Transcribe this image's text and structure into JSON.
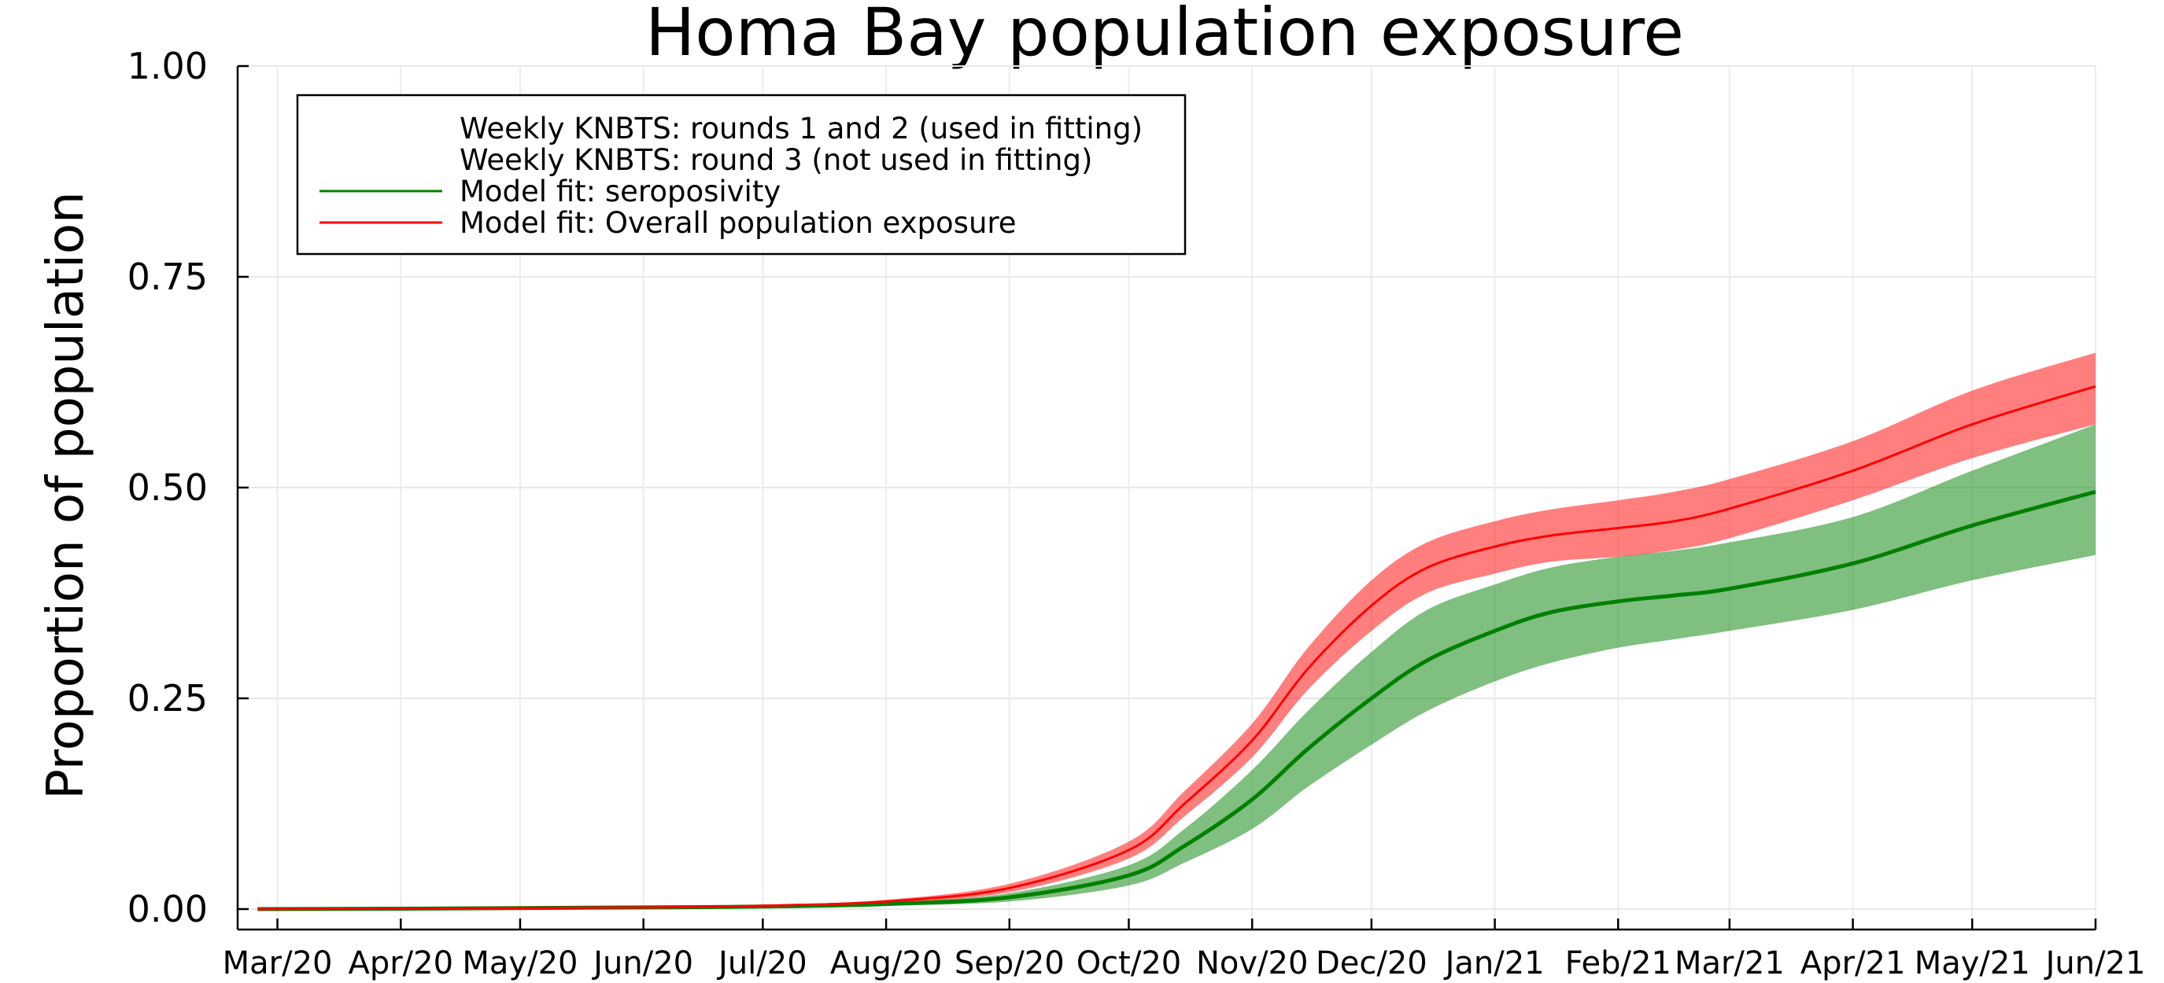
{
  "chart_data": {
    "type": "line",
    "title": "Homa Bay population exposure",
    "ylabel": "Proportion of population",
    "xlabel": "",
    "ylim": [
      0,
      1
    ],
    "yticks": [
      "0.00",
      "0.25",
      "0.50",
      "0.75",
      "1.00"
    ],
    "ytick_values": [
      0,
      0.25,
      0.5,
      0.75,
      1.0
    ],
    "xtick_labels": [
      "Mar/20",
      "Apr/20",
      "May/20",
      "Jun/20",
      "Jul/20",
      "Aug/20",
      "Sep/20",
      "Oct/20",
      "Nov/20",
      "Dec/20",
      "Jan/21",
      "Feb/21",
      "Mar/21",
      "Apr/21",
      "May/21",
      "Jun/21"
    ],
    "xtick_dates": [
      "2020-03-01",
      "2020-04-01",
      "2020-05-01",
      "2020-06-01",
      "2020-07-01",
      "2020-08-01",
      "2020-09-01",
      "2020-10-01",
      "2020-11-01",
      "2020-12-01",
      "2021-01-01",
      "2021-02-01",
      "2021-03-01",
      "2021-04-01",
      "2021-05-01",
      "2021-06-01"
    ],
    "xlim": [
      "2020-02-20",
      "2021-06-01"
    ],
    "grid": true,
    "legend_position": "top-left",
    "legend": [
      {
        "label": "Weekly KNBTS: rounds 1 and 2 (used in fitting)",
        "color": "",
        "marker": "none"
      },
      {
        "label": "Weekly KNBTS: round 3 (not used in fitting)",
        "color": "",
        "marker": "none"
      },
      {
        "label": "Model fit: seroposivity",
        "color": "#008000",
        "marker": "line"
      },
      {
        "label": "Model fit: Overall population exposure",
        "color": "#ff0000",
        "marker": "line"
      }
    ],
    "x": [
      "2020-02-25",
      "2020-04-01",
      "2020-06-01",
      "2020-07-01",
      "2020-08-01",
      "2020-09-01",
      "2020-10-01",
      "2020-10-15",
      "2020-11-01",
      "2020-11-15",
      "2020-12-01",
      "2020-12-15",
      "2021-01-01",
      "2021-01-15",
      "2021-02-01",
      "2021-02-15",
      "2021-03-01",
      "2021-04-01",
      "2021-05-01",
      "2021-06-01"
    ],
    "series": [
      {
        "name": "Model fit: seroposivity",
        "color": "#008000",
        "values": [
          0.0,
          0.0005,
          0.002,
          0.003,
          0.006,
          0.014,
          0.04,
          0.075,
          0.13,
          0.19,
          0.25,
          0.295,
          0.33,
          0.352,
          0.365,
          0.372,
          0.38,
          0.41,
          0.455,
          0.495
        ],
        "lower": [
          0.0,
          0.0003,
          0.0015,
          0.002,
          0.004,
          0.009,
          0.028,
          0.055,
          0.095,
          0.145,
          0.195,
          0.235,
          0.27,
          0.292,
          0.31,
          0.32,
          0.33,
          0.355,
          0.39,
          0.42
        ],
        "upper": [
          0.0,
          0.0007,
          0.0025,
          0.004,
          0.008,
          0.019,
          0.052,
          0.095,
          0.165,
          0.235,
          0.305,
          0.355,
          0.385,
          0.405,
          0.418,
          0.425,
          0.435,
          0.465,
          0.52,
          0.575
        ]
      },
      {
        "name": "Model fit: Overall population exposure",
        "color": "#ff0000",
        "values": [
          0.0,
          0.0006,
          0.002,
          0.004,
          0.009,
          0.025,
          0.07,
          0.125,
          0.2,
          0.285,
          0.36,
          0.405,
          0.43,
          0.443,
          0.452,
          0.46,
          0.475,
          0.52,
          0.575,
          0.62
        ],
        "lower": [
          0.0,
          0.0004,
          0.0015,
          0.003,
          0.007,
          0.02,
          0.06,
          0.11,
          0.18,
          0.26,
          0.33,
          0.375,
          0.398,
          0.412,
          0.418,
          0.426,
          0.44,
          0.485,
          0.535,
          0.575
        ],
        "upper": [
          0.0,
          0.0008,
          0.0025,
          0.005,
          0.011,
          0.03,
          0.08,
          0.14,
          0.22,
          0.31,
          0.39,
          0.435,
          0.46,
          0.474,
          0.485,
          0.495,
          0.51,
          0.555,
          0.615,
          0.66
        ]
      }
    ]
  }
}
